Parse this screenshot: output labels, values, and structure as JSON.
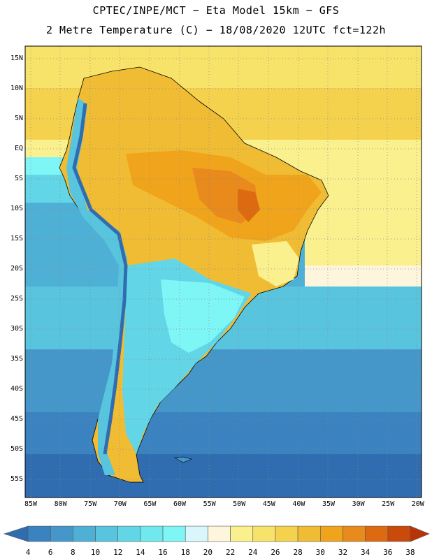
{
  "header": {
    "line1": "CPTEC/INPE/MCT −  Eta Model 15km − GFS",
    "line2": "2 Metre Temperature (C) − 18/08/2020 12UTC fct=122h"
  },
  "axes": {
    "lat_labels": [
      "15N",
      "10N",
      "5N",
      "EQ",
      "5S",
      "10S",
      "15S",
      "20S",
      "25S",
      "30S",
      "35S",
      "40S",
      "45S",
      "50S",
      "55S"
    ],
    "lon_labels": [
      "85W",
      "80W",
      "75W",
      "70W",
      "65W",
      "60W",
      "55W",
      "50W",
      "45W",
      "40W",
      "35W",
      "30W",
      "25W",
      "20W"
    ]
  },
  "colorbar": {
    "labels": [
      "4",
      "6",
      "8",
      "10",
      "12",
      "14",
      "16",
      "18",
      "20",
      "22",
      "24",
      "26",
      "28",
      "30",
      "32",
      "34",
      "36",
      "38"
    ],
    "colors": [
      "#2f6db0",
      "#3a82c0",
      "#4597c9",
      "#4fb0d6",
      "#58c4de",
      "#62d6e6",
      "#6fe8ee",
      "#7ef6f6",
      "#d8f6fb",
      "#fdf6dc",
      "#fbf08e",
      "#f8e36a",
      "#f5d24e",
      "#f0bc34",
      "#f0a41c",
      "#e88a1c",
      "#dd6a10",
      "#c94a0a",
      "#b83408"
    ]
  },
  "chart_data": {
    "type": "heatmap",
    "title": "2 Metre Temperature (C) − 18/08/2020 12UTC fct=122h",
    "source": "CPTEC/INPE/MCT − Eta Model 15km − GFS",
    "variable": "2 Metre Temperature",
    "units": "C",
    "lon_range": [
      -86,
      -19
    ],
    "lat_range": [
      17,
      -58
    ],
    "color_levels": [
      4,
      6,
      8,
      10,
      12,
      14,
      16,
      18,
      20,
      22,
      24,
      26,
      28,
      30,
      32,
      34,
      36,
      38
    ],
    "grid": true
  }
}
